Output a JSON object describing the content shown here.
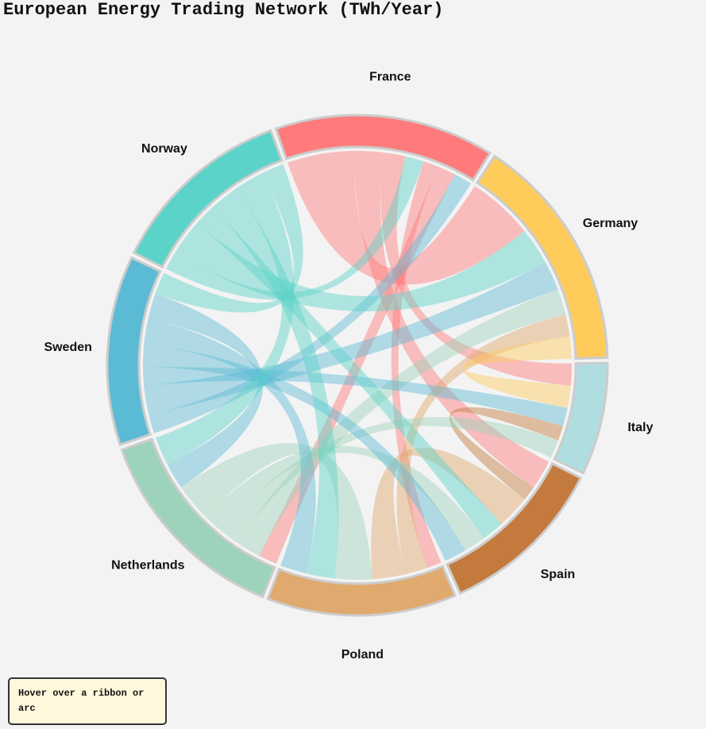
{
  "chart_data": {
    "type": "chord",
    "title": "European Energy Trading Network (TWh/Year)",
    "nodes": [
      {
        "name": "France",
        "color": "#ff7b7b"
      },
      {
        "name": "Germany",
        "color": "#ffcc5c"
      },
      {
        "name": "Italy",
        "color": "#b0dde0"
      },
      {
        "name": "Spain",
        "color": "#c47a3c"
      },
      {
        "name": "Poland",
        "color": "#e0a96d"
      },
      {
        "name": "Netherlands",
        "color": "#9dd3bb"
      },
      {
        "name": "Sweden",
        "color": "#5bbbd4"
      },
      {
        "name": "Norway",
        "color": "#5cd3c8"
      }
    ],
    "flows": [
      {
        "source": "France",
        "target": "Germany",
        "value": 18
      },
      {
        "source": "France",
        "target": "Spain",
        "value": 8
      },
      {
        "source": "France",
        "target": "Italy",
        "value": 6
      },
      {
        "source": "Norway",
        "target": "France",
        "value": 5
      },
      {
        "source": "France",
        "target": "Poland",
        "value": 4
      },
      {
        "source": "France",
        "target": "Netherlands",
        "value": 5
      },
      {
        "source": "Sweden",
        "target": "France",
        "value": 5
      },
      {
        "source": "Norway",
        "target": "Germany",
        "value": 10
      },
      {
        "source": "Sweden",
        "target": "Germany",
        "value": 8
      },
      {
        "source": "Netherlands",
        "target": "Germany",
        "value": 7
      },
      {
        "source": "Poland",
        "target": "Germany",
        "value": 6
      },
      {
        "source": "Germany",
        "target": "Italy",
        "value": 6
      },
      {
        "source": "Sweden",
        "target": "Italy",
        "value": 5
      },
      {
        "source": "Spain",
        "target": "Italy",
        "value": 4
      },
      {
        "source": "Netherlands",
        "target": "Italy",
        "value": 5
      },
      {
        "source": "Poland",
        "target": "Spain",
        "value": 9
      },
      {
        "source": "Norway",
        "target": "Spain",
        "value": 6
      },
      {
        "source": "Netherlands",
        "target": "Spain",
        "value": 6
      },
      {
        "source": "Sweden",
        "target": "Spain",
        "value": 6
      },
      {
        "source": "Netherlands",
        "target": "Poland",
        "value": 10
      },
      {
        "source": "Norway",
        "target": "Poland",
        "value": 8
      },
      {
        "source": "Sweden",
        "target": "Poland",
        "value": 7
      },
      {
        "source": "Sweden",
        "target": "Netherlands",
        "value": 7
      },
      {
        "source": "Norway",
        "target": "Netherlands",
        "value": 8
      },
      {
        "source": "Norway",
        "target": "Sweden",
        "value": 6
      }
    ],
    "tooltip": "Hover over a ribbon or arc"
  }
}
